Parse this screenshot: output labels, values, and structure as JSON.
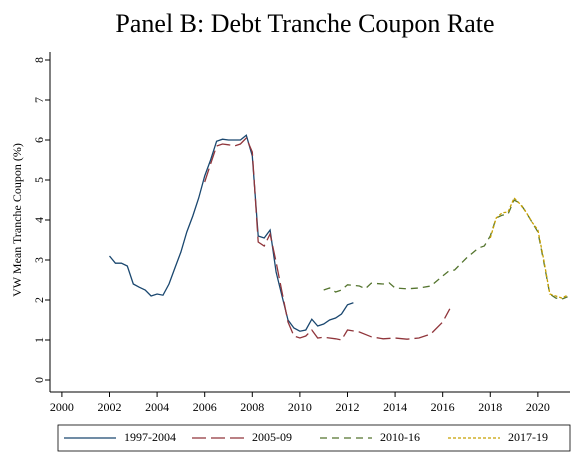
{
  "chart_data": {
    "type": "line",
    "title": "Panel B: Debt Tranche Coupon Rate",
    "y_label": "VW Mean Tranche Coupon (%)",
    "xlim": [
      1999.5,
      2021.35
    ],
    "xticks": [
      2000,
      2002,
      2004,
      2006,
      2008,
      2010,
      2012,
      2014,
      2016,
      2018,
      2020
    ],
    "ylim": [
      -0.3,
      8.2
    ],
    "yticks": [
      0,
      1,
      2,
      3,
      4,
      5,
      6,
      7,
      8
    ],
    "legend": "bottom",
    "series": [
      {
        "name": "1997-2004",
        "color": "#1a476f",
        "dash": "solid",
        "x": [
          2002,
          2002.25,
          2002.5,
          2002.75,
          2003,
          2003.25,
          2003.5,
          2003.75,
          2004,
          2004.25,
          2004.5,
          2004.75,
          2005,
          2005.25,
          2005.5,
          2005.75,
          2006,
          2006.25,
          2006.5,
          2006.75,
          2007,
          2007.5,
          2007.75,
          2008,
          2008.25,
          2008.5,
          2008.75,
          2009,
          2009.25,
          2009.5,
          2009.75,
          2010,
          2010.25,
          2010.5,
          2010.75,
          2011,
          2011.25,
          2011.5,
          2011.75,
          2012,
          2012.25
        ],
        "values": [
          3.1,
          2.92,
          2.92,
          2.85,
          2.4,
          2.32,
          2.25,
          2.1,
          2.15,
          2.12,
          2.4,
          2.8,
          3.2,
          3.7,
          4.1,
          4.55,
          5.1,
          5.5,
          5.97,
          6.02,
          6.0,
          6.0,
          6.12,
          5.6,
          3.6,
          3.55,
          3.75,
          2.7,
          2.1,
          1.5,
          1.3,
          1.22,
          1.25,
          1.52,
          1.35,
          1.4,
          1.5,
          1.55,
          1.65,
          1.88,
          1.93
        ]
      },
      {
        "name": "2005-09",
        "color": "#90353b",
        "dash": "longdash",
        "x": [
          2006,
          2006.25,
          2006.5,
          2006.75,
          2007,
          2007.25,
          2007.5,
          2007.75,
          2008,
          2008.25,
          2008.5,
          2008.75,
          2009,
          2009.25,
          2009.5,
          2009.75,
          2010,
          2010.25,
          2010.5,
          2010.75,
          2011,
          2011.5,
          2011.75,
          2012,
          2012.5,
          2013,
          2013.5,
          2014,
          2014.5,
          2015,
          2015.5,
          2016,
          2016.3
        ],
        "values": [
          4.95,
          5.4,
          5.85,
          5.9,
          5.88,
          5.85,
          5.9,
          6.05,
          5.7,
          3.45,
          3.35,
          3.65,
          2.95,
          2.2,
          1.45,
          1.1,
          1.05,
          1.1,
          1.25,
          1.05,
          1.07,
          1.03,
          1.0,
          1.25,
          1.2,
          1.08,
          1.03,
          1.05,
          1.02,
          1.05,
          1.15,
          1.45,
          1.78
        ]
      },
      {
        "name": "2010-16",
        "color": "#55752f",
        "dash": "dash",
        "x": [
          2011,
          2011.25,
          2011.5,
          2011.75,
          2012,
          2012.5,
          2012.75,
          2013,
          2013.5,
          2013.75,
          2014,
          2014.5,
          2015,
          2015.5,
          2016,
          2016.25,
          2016.5,
          2016.75,
          2017,
          2017.5,
          2017.75,
          2018,
          2018.25,
          2018.5,
          2018.75,
          2019,
          2019.25,
          2019.5,
          2019.75,
          2020,
          2020.25,
          2020.5,
          2020.75,
          2021,
          2021.25
        ],
        "values": [
          2.25,
          2.3,
          2.2,
          2.25,
          2.38,
          2.35,
          2.28,
          2.42,
          2.4,
          2.43,
          2.3,
          2.28,
          2.3,
          2.35,
          2.6,
          2.72,
          2.75,
          2.9,
          3.05,
          3.3,
          3.35,
          3.6,
          4.05,
          4.12,
          4.15,
          4.5,
          4.42,
          4.2,
          3.95,
          3.7,
          2.95,
          2.15,
          2.05,
          2.02,
          2.08
        ]
      },
      {
        "name": "2017-19",
        "color": "#c8a000",
        "dash": "dot",
        "x": [
          2018,
          2018.25,
          2018.5,
          2018.75,
          2019,
          2019.25,
          2019.5,
          2019.75,
          2020,
          2020.25,
          2020.5,
          2020.75,
          2021,
          2021.25
        ],
        "values": [
          3.55,
          4.05,
          4.18,
          4.2,
          4.55,
          4.4,
          4.2,
          3.95,
          3.75,
          3.0,
          2.15,
          2.1,
          2.05,
          2.12
        ]
      }
    ]
  }
}
